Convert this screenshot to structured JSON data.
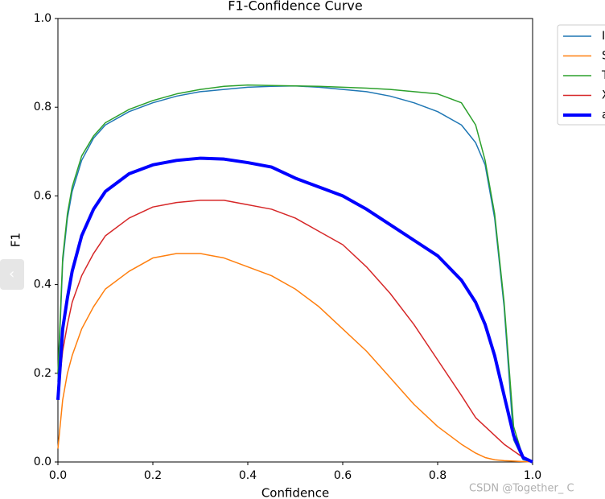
{
  "chart_data": {
    "type": "line",
    "title": "F1-Confidence Curve",
    "x_label": "Confidence",
    "y_label": "F1",
    "x": [
      0,
      0.01,
      0.02,
      0.03,
      0.05,
      0.075,
      0.1,
      0.15,
      0.2,
      0.25,
      0.3,
      0.35,
      0.4,
      0.45,
      0.5,
      0.55,
      0.6,
      0.65,
      0.7,
      0.75,
      0.8,
      0.85,
      0.88,
      0.9,
      0.92,
      0.94,
      0.96,
      0.98,
      1.0
    ],
    "series": [
      {
        "name": "I",
        "color": "#1f77b4",
        "width": 1.5,
        "values": [
          0.18,
          0.45,
          0.55,
          0.61,
          0.68,
          0.73,
          0.76,
          0.79,
          0.81,
          0.825,
          0.835,
          0.84,
          0.845,
          0.847,
          0.848,
          0.845,
          0.84,
          0.835,
          0.825,
          0.81,
          0.79,
          0.76,
          0.72,
          0.67,
          0.55,
          0.35,
          0.05,
          0.005,
          0
        ]
      },
      {
        "name": "S",
        "color": "#ff7f0e",
        "width": 1.5,
        "values": [
          0.03,
          0.14,
          0.2,
          0.24,
          0.3,
          0.35,
          0.39,
          0.43,
          0.46,
          0.47,
          0.47,
          0.46,
          0.44,
          0.42,
          0.39,
          0.35,
          0.3,
          0.25,
          0.19,
          0.13,
          0.08,
          0.04,
          0.02,
          0.01,
          0.005,
          0.003,
          0.002,
          0.001,
          0
        ]
      },
      {
        "name": "T",
        "color": "#2ca02c",
        "width": 1.5,
        "values": [
          0.2,
          0.46,
          0.56,
          0.62,
          0.69,
          0.735,
          0.765,
          0.795,
          0.815,
          0.83,
          0.84,
          0.847,
          0.85,
          0.849,
          0.848,
          0.847,
          0.845,
          0.843,
          0.84,
          0.835,
          0.83,
          0.81,
          0.76,
          0.68,
          0.56,
          0.36,
          0.08,
          0.01,
          0
        ]
      },
      {
        "name": "X",
        "color": "#d62728",
        "width": 1.5,
        "values": [
          0.15,
          0.25,
          0.31,
          0.36,
          0.42,
          0.47,
          0.51,
          0.55,
          0.575,
          0.585,
          0.59,
          0.59,
          0.58,
          0.57,
          0.55,
          0.52,
          0.49,
          0.44,
          0.38,
          0.31,
          0.23,
          0.15,
          0.1,
          0.08,
          0.06,
          0.04,
          0.025,
          0.01,
          0
        ]
      },
      {
        "name": "a",
        "color": "#0000ff",
        "width": 4,
        "values": [
          0.14,
          0.3,
          0.37,
          0.43,
          0.51,
          0.57,
          0.61,
          0.65,
          0.67,
          0.68,
          0.685,
          0.683,
          0.675,
          0.665,
          0.64,
          0.62,
          0.6,
          0.57,
          0.535,
          0.5,
          0.465,
          0.41,
          0.36,
          0.31,
          0.24,
          0.15,
          0.06,
          0.01,
          0
        ]
      }
    ],
    "xlim": [
      0,
      1
    ],
    "ylim": [
      0,
      1
    ],
    "xticks": [
      {
        "value": 0,
        "label": "0.0"
      },
      {
        "value": 0.2,
        "label": "0.2"
      },
      {
        "value": 0.4,
        "label": "0.4"
      },
      {
        "value": 0.6,
        "label": "0.6"
      },
      {
        "value": 0.8,
        "label": "0.8"
      },
      {
        "value": 1,
        "label": "1.0"
      }
    ],
    "yticks": [
      {
        "value": 0,
        "label": "0.0"
      },
      {
        "value": 0.2,
        "label": "0.2"
      },
      {
        "value": 0.4,
        "label": "0.4"
      },
      {
        "value": 0.6,
        "label": "0.6"
      },
      {
        "value": 0.8,
        "label": "0.8"
      },
      {
        "value": 1,
        "label": "1.0"
      }
    ],
    "legend": "outside-right"
  },
  "overlay": {
    "prev_button": "‹",
    "watermark": "CSDN @Together_ C"
  }
}
